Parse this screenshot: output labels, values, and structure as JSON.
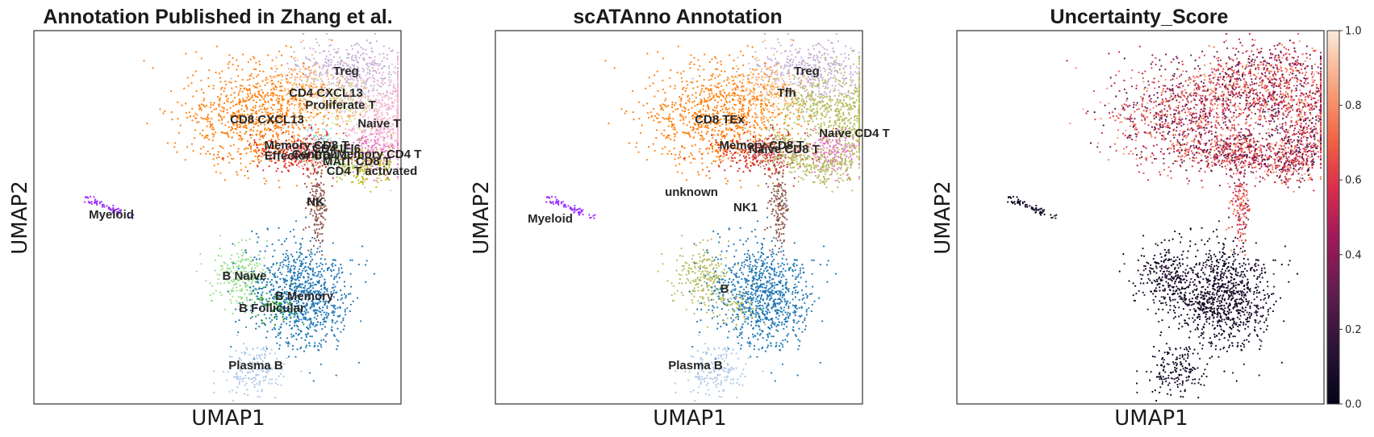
{
  "chart_data": [
    {
      "type": "scatter",
      "title": "Annotation Published in Zhang et al.",
      "xlabel": "UMAP1",
      "ylabel": "UMAP2",
      "legend": "on data",
      "cluster_labels": [
        {
          "label": "Treg",
          "color": "#c5b0d5"
        },
        {
          "label": "CD4 CXCL13",
          "color": "#ffbb78"
        },
        {
          "label": "Proliferate T",
          "color": "#dbdb8d"
        },
        {
          "label": "CD8 CXCL13",
          "color": "#ff7f0e"
        },
        {
          "label": "Naive T",
          "color": "#f7b6d2"
        },
        {
          "label": "Memory CD8 T",
          "color": "#d62728"
        },
        {
          "label": "CD4 IFI6",
          "color": "#9edae5"
        },
        {
          "label": "Effector CD4 T",
          "color": "#ff9896"
        },
        {
          "label": "Central Memory CD4 T",
          "color": "#e377c2"
        },
        {
          "label": "MAIT CD8 T",
          "color": "#98df8a"
        },
        {
          "label": "CD4 T activated",
          "color": "#bcbd22"
        },
        {
          "label": "NK",
          "color": "#8c564b"
        },
        {
          "label": "Myeloid",
          "color": "#9b30ff"
        },
        {
          "label": "B Naive",
          "color": "#98df8a"
        },
        {
          "label": "B Memory",
          "color": "#1f77b4"
        },
        {
          "label": "B Follicular",
          "color": "#2ca02c"
        },
        {
          "label": "Plasma B",
          "color": "#aec7e8"
        }
      ]
    },
    {
      "type": "scatter",
      "title": "scATAnno Annotation",
      "xlabel": "UMAP1",
      "ylabel": "UMAP2",
      "legend": "on data",
      "cluster_labels": [
        {
          "label": "Treg",
          "color": "#c5b0d5"
        },
        {
          "label": "Tfh",
          "color": "#ffbb78"
        },
        {
          "label": "CD8 TEx",
          "color": "#ff7f0e"
        },
        {
          "label": "Naive CD4 T",
          "color": "#b5bd61"
        },
        {
          "label": "Memory CD8 T",
          "color": "#d62728"
        },
        {
          "label": "Naive CD8 T",
          "color": "#e377c2"
        },
        {
          "label": "unknown",
          "color": "#c49c94"
        },
        {
          "label": "NK1",
          "color": "#8c564b"
        },
        {
          "label": "Myeloid",
          "color": "#9b30ff"
        },
        {
          "label": "B",
          "color": "#1f77b4"
        },
        {
          "label": "Plasma B",
          "color": "#aec7e8"
        }
      ]
    },
    {
      "type": "scatter",
      "title": "Uncertainty_Score",
      "xlabel": "UMAP1",
      "ylabel": "UMAP2",
      "colorbar": {
        "range": [
          0.0,
          1.0
        ],
        "ticks": [
          "0.0",
          "0.2",
          "0.4",
          "0.6",
          "0.8",
          "1.0"
        ],
        "colormap": "rocket"
      }
    }
  ]
}
